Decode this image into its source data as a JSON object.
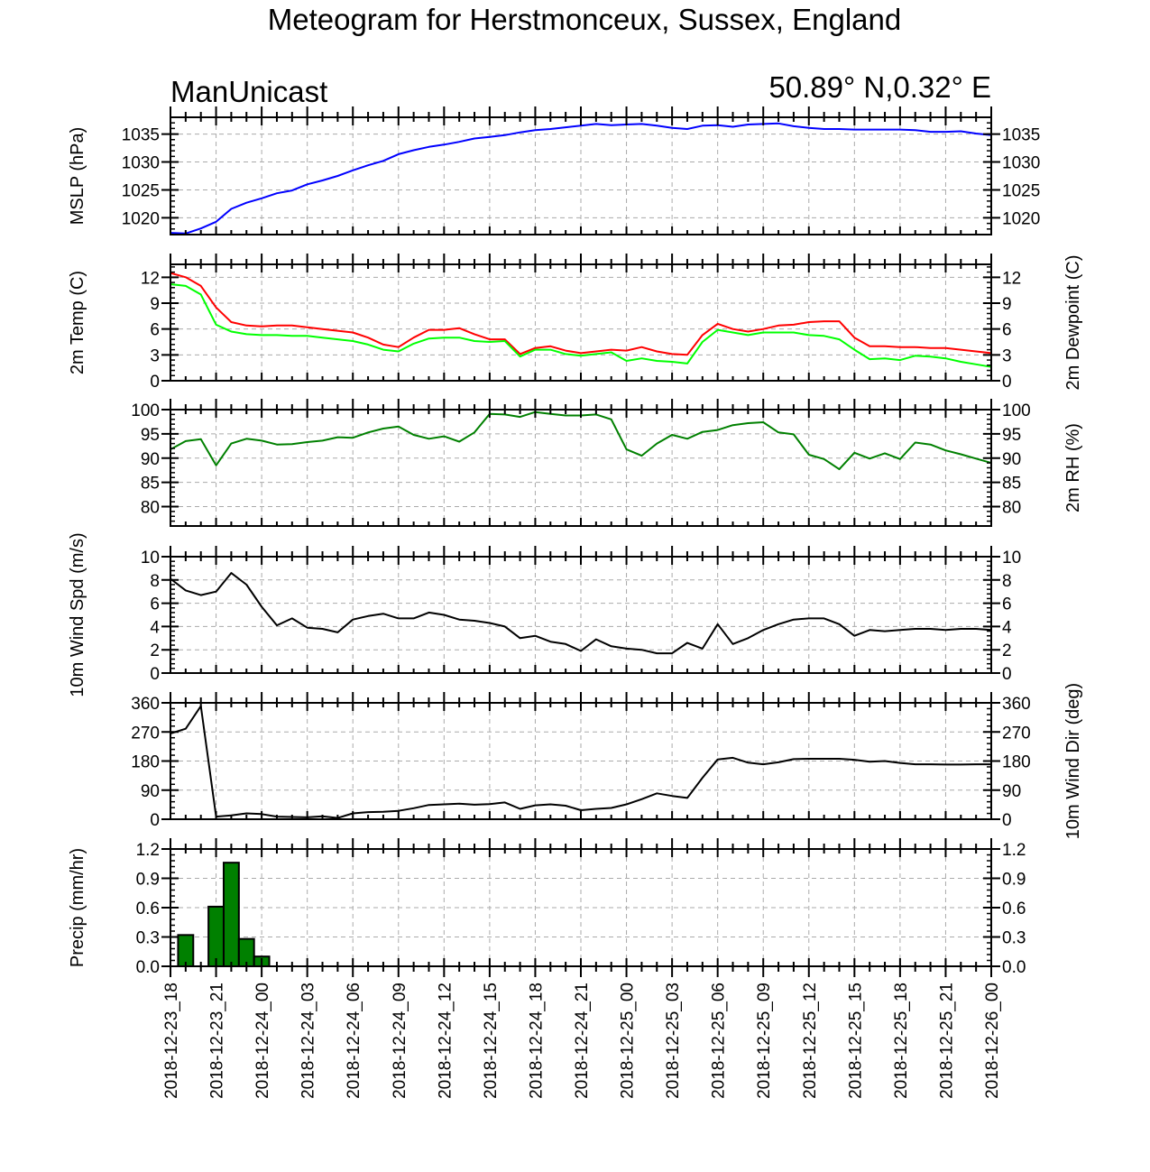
{
  "page": {
    "title": "Meteogram for Herstmonceux, Sussex, England",
    "model": "ManUnicast",
    "location": "50.89° N,0.32° E"
  },
  "colors": {
    "mslp": "#0000ff",
    "temp": "#ff0000",
    "dewpoint": "#00ff00",
    "rh": "#008000",
    "wind": "#000000",
    "precip": "#008000",
    "grid": "#aaaaaa"
  },
  "chart_data": {
    "type": "line",
    "x_labels": [
      "2018-12-23_18",
      "2018-12-23_21",
      "2018-12-24_00",
      "2018-12-24_03",
      "2018-12-24_06",
      "2018-12-24_09",
      "2018-12-24_12",
      "2018-12-24_15",
      "2018-12-24_18",
      "2018-12-24_21",
      "2018-12-25_00",
      "2018-12-25_03",
      "2018-12-25_06",
      "2018-12-25_09",
      "2018-12-25_12",
      "2018-12-25_15",
      "2018-12-25_18",
      "2018-12-25_21",
      "2018-12-26_00"
    ],
    "x_range_hours": [
      0,
      54
    ],
    "panels": [
      {
        "id": "mslp",
        "ylabel": "MSLP (hPa)",
        "ylabel_right": "",
        "ylim": [
          1017,
          1038
        ],
        "ticks": [
          1020,
          1025,
          1030,
          1035
        ],
        "tick_labels": [
          "1020",
          "1025",
          "1030",
          "1035"
        ],
        "series": [
          {
            "color_key": "mslp",
            "type": "line",
            "x": [
              0,
              1,
              2,
              3,
              4,
              5,
              6,
              7,
              8,
              9,
              10,
              11,
              12,
              13,
              14,
              15,
              16,
              17,
              18,
              19,
              20,
              21,
              22,
              23,
              24,
              25,
              26,
              27,
              28,
              29,
              30,
              31,
              32,
              33,
              34,
              35,
              36,
              37,
              38,
              39,
              40,
              41,
              42,
              43,
              44,
              45,
              46,
              47,
              48,
              49,
              50,
              51,
              52,
              53,
              54
            ],
            "values": [
              1017.3,
              1017.2,
              1018.1,
              1019.3,
              1021.6,
              1022.7,
              1023.5,
              1024.4,
              1024.9,
              1026.0,
              1026.7,
              1027.5,
              1028.5,
              1029.4,
              1030.2,
              1031.4,
              1032.1,
              1032.7,
              1033.1,
              1033.6,
              1034.2,
              1034.5,
              1034.8,
              1035.3,
              1035.7,
              1035.9,
              1036.2,
              1036.5,
              1036.8,
              1036.6,
              1036.7,
              1036.8,
              1036.5,
              1036.1,
              1035.9,
              1036.5,
              1036.6,
              1036.3,
              1036.7,
              1036.8,
              1036.9,
              1036.4,
              1036.1,
              1035.9,
              1035.9,
              1035.8,
              1035.8,
              1035.8,
              1035.8,
              1035.7,
              1035.4,
              1035.4,
              1035.5,
              1035.1,
              1034.8
            ]
          }
        ]
      },
      {
        "id": "temp",
        "ylabel": "2m Temp (C)",
        "ylabel_right": "2m Dewpoint (C)",
        "ylim": [
          0,
          13.5
        ],
        "ticks": [
          0,
          3,
          6,
          9,
          12
        ],
        "tick_labels": [
          "0",
          "3",
          "6",
          "9",
          "12"
        ],
        "series": [
          {
            "color_key": "temp",
            "type": "line",
            "x": [
              0,
              1,
              2,
              3,
              4,
              5,
              6,
              7,
              8,
              9,
              10,
              11,
              12,
              13,
              14,
              15,
              16,
              17,
              18,
              19,
              20,
              21,
              22,
              23,
              24,
              25,
              26,
              27,
              28,
              29,
              30,
              31,
              32,
              33,
              34,
              35,
              36,
              37,
              38,
              39,
              40,
              41,
              42,
              43,
              44,
              45,
              46,
              47,
              48,
              49,
              50,
              51,
              52,
              53,
              54
            ],
            "values": [
              12.5,
              12.0,
              11.0,
              8.5,
              6.8,
              6.4,
              6.3,
              6.4,
              6.4,
              6.2,
              6.0,
              5.8,
              5.6,
              5.0,
              4.2,
              3.9,
              5.0,
              5.9,
              5.9,
              6.1,
              5.4,
              4.8,
              4.8,
              3.1,
              3.8,
              4.0,
              3.5,
              3.2,
              3.4,
              3.6,
              3.5,
              3.9,
              3.4,
              3.1,
              3.0,
              5.3,
              6.6,
              6.0,
              5.7,
              6.0,
              6.4,
              6.5,
              6.8,
              6.9,
              6.9,
              5.0,
              4.0,
              4.0,
              3.9,
              3.9,
              3.8,
              3.8,
              3.6,
              3.4,
              3.2
            ]
          },
          {
            "color_key": "dewpoint",
            "type": "line",
            "x": [
              0,
              1,
              2,
              3,
              4,
              5,
              6,
              7,
              8,
              9,
              10,
              11,
              12,
              13,
              14,
              15,
              16,
              17,
              18,
              19,
              20,
              21,
              22,
              23,
              24,
              25,
              26,
              27,
              28,
              29,
              30,
              31,
              32,
              33,
              34,
              35,
              36,
              37,
              38,
              39,
              40,
              41,
              42,
              43,
              44,
              45,
              46,
              47,
              48,
              49,
              50,
              51,
              52,
              53,
              54
            ],
            "values": [
              11.2,
              11.0,
              10.0,
              6.5,
              5.7,
              5.4,
              5.3,
              5.3,
              5.2,
              5.2,
              5.0,
              4.8,
              4.6,
              4.2,
              3.6,
              3.4,
              4.3,
              4.9,
              5.0,
              5.0,
              4.6,
              4.5,
              4.6,
              2.8,
              3.6,
              3.6,
              3.1,
              2.9,
              3.1,
              3.3,
              2.3,
              2.6,
              2.3,
              2.2,
              2.0,
              4.5,
              5.9,
              5.6,
              5.3,
              5.6,
              5.6,
              5.6,
              5.3,
              5.2,
              4.8,
              3.6,
              2.5,
              2.6,
              2.4,
              2.9,
              2.8,
              2.6,
              2.2,
              1.9,
              1.6
            ]
          }
        ]
      },
      {
        "id": "rh",
        "ylabel": "",
        "ylabel_right": "2m RH (%)",
        "ylim": [
          76,
          100
        ],
        "ticks": [
          80,
          85,
          90,
          95,
          100
        ],
        "tick_labels": [
          "80",
          "85",
          "90",
          "95",
          "100"
        ],
        "series": [
          {
            "color_key": "rh",
            "type": "line",
            "x": [
              0,
              1,
              2,
              3,
              4,
              5,
              6,
              7,
              8,
              9,
              10,
              11,
              12,
              13,
              14,
              15,
              16,
              17,
              18,
              19,
              20,
              21,
              22,
              23,
              24,
              25,
              26,
              27,
              28,
              29,
              30,
              31,
              32,
              33,
              34,
              35,
              36,
              37,
              38,
              39,
              40,
              41,
              42,
              43,
              44,
              45,
              46,
              47,
              48,
              49,
              50,
              51,
              52,
              53,
              54
            ],
            "values": [
              91.8,
              93.5,
              93.9,
              88.5,
              93.0,
              94.0,
              93.6,
              92.8,
              92.9,
              93.3,
              93.6,
              94.3,
              94.2,
              95.3,
              96.1,
              96.5,
              94.8,
              94.0,
              94.5,
              93.4,
              95.3,
              99.1,
              99.0,
              98.5,
              99.5,
              99.1,
              98.8,
              98.8,
              99.0,
              98.0,
              91.8,
              90.5,
              93.0,
              94.8,
              94.0,
              95.4,
              95.8,
              96.8,
              97.2,
              97.4,
              95.3,
              94.9,
              90.7,
              89.8,
              87.7,
              91.1,
              89.9,
              91.0,
              89.8,
              93.2,
              92.8,
              91.6,
              90.8,
              89.9,
              89.0
            ]
          }
        ]
      },
      {
        "id": "wspd",
        "ylabel": "10m Wind Spd (m/s)",
        "ylabel_right": "",
        "ylim": [
          0,
          10
        ],
        "ticks": [
          0,
          2,
          4,
          6,
          8,
          10
        ],
        "tick_labels": [
          "0",
          "2",
          "4",
          "6",
          "8",
          "10"
        ],
        "series": [
          {
            "color_key": "wind",
            "type": "line",
            "x": [
              0,
              1,
              2,
              3,
              4,
              5,
              6,
              7,
              8,
              9,
              10,
              11,
              12,
              13,
              14,
              15,
              16,
              17,
              18,
              19,
              20,
              21,
              22,
              23,
              24,
              25,
              26,
              27,
              28,
              29,
              30,
              31,
              32,
              33,
              34,
              35,
              36,
              37,
              38,
              39,
              40,
              41,
              42,
              43,
              44,
              45,
              46,
              47,
              48,
              49,
              50,
              51,
              52,
              53,
              54
            ],
            "values": [
              8.1,
              7.1,
              6.7,
              7.0,
              8.6,
              7.6,
              5.7,
              4.1,
              4.7,
              3.9,
              3.8,
              3.5,
              4.6,
              4.9,
              5.1,
              4.7,
              4.7,
              5.2,
              5.0,
              4.6,
              4.5,
              4.3,
              4.0,
              3.0,
              3.2,
              2.7,
              2.5,
              1.9,
              2.9,
              2.3,
              2.1,
              2.0,
              1.7,
              1.7,
              2.6,
              2.1,
              4.2,
              2.5,
              3.0,
              3.7,
              4.2,
              4.6,
              4.7,
              4.7,
              4.2,
              3.2,
              3.7,
              3.6,
              3.7,
              3.8,
              3.8,
              3.7,
              3.8,
              3.8,
              3.7
            ]
          }
        ]
      },
      {
        "id": "wdir",
        "ylabel": "",
        "ylabel_right": "10m Wind Dir (deg)",
        "ylim": [
          0,
          360
        ],
        "ticks": [
          0,
          90,
          180,
          270,
          360
        ],
        "tick_labels": [
          "0",
          "90",
          "180",
          "270",
          "360"
        ],
        "series": [
          {
            "color_key": "wind",
            "type": "line",
            "x": [
              0,
              1,
              2,
              3,
              4,
              5,
              6,
              7,
              8,
              9,
              10,
              11,
              12,
              13,
              14,
              15,
              16,
              17,
              18,
              19,
              20,
              21,
              22,
              23,
              24,
              25,
              26,
              27,
              28,
              29,
              30,
              31,
              32,
              33,
              34,
              35,
              36,
              37,
              38,
              39,
              40,
              41,
              42,
              43,
              44,
              45,
              46,
              47,
              48,
              49,
              50,
              51,
              52,
              53,
              54
            ],
            "values": [
              265,
              280,
              350,
              8,
              12,
              18,
              16,
              8,
              7,
              6,
              9,
              4,
              18,
              22,
              23,
              26,
              34,
              44,
              46,
              48,
              45,
              47,
              52,
              32,
              43,
              46,
              42,
              28,
              32,
              35,
              46,
              62,
              80,
              72,
              66,
              128,
              185,
              190,
              175,
              170,
              176,
              186,
              187,
              187,
              187,
              184,
              178,
              180,
              174,
              170,
              170,
              169,
              169,
              170,
              170
            ]
          }
        ]
      },
      {
        "id": "precip",
        "ylabel": "Precip (mm/hr)",
        "ylabel_right": "",
        "ylim": [
          0,
          1.2
        ],
        "ticks": [
          0,
          0.3,
          0.6,
          0.9,
          1.2
        ],
        "tick_labels": [
          "0.0",
          "0.3",
          "0.6",
          "0.9",
          "1.2"
        ],
        "series": [
          {
            "color_key": "precip",
            "type": "bar",
            "x": [
              1,
              2,
              3,
              4,
              5,
              6,
              7
            ],
            "values": [
              0.32,
              0.0,
              0.61,
              1.06,
              0.28,
              0.1,
              0.0
            ]
          }
        ]
      }
    ]
  }
}
